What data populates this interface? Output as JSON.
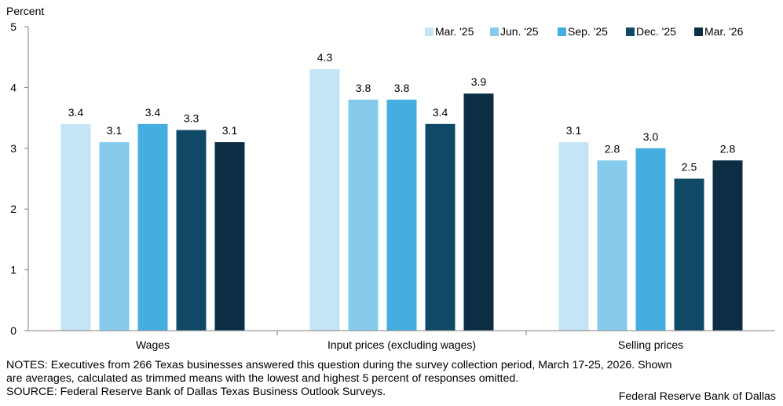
{
  "chart_data": {
    "type": "bar",
    "ylabel": "Percent",
    "ylim": [
      0,
      5
    ],
    "yticks": [
      "0",
      "1",
      "2",
      "3",
      "4",
      "5"
    ],
    "categories": [
      "Wages",
      "Input prices (excluding wages)",
      "Selling prices"
    ],
    "series": [
      {
        "name": "Mar. '25",
        "color": "#c5e4f5",
        "values": [
          3.4,
          4.3,
          3.1
        ],
        "labels": [
          "3.4",
          "4.3",
          "3.1"
        ]
      },
      {
        "name": "Jun. '25",
        "color": "#86cbeb",
        "values": [
          3.1,
          3.8,
          2.8
        ],
        "labels": [
          "3.1",
          "3.8",
          "2.8"
        ]
      },
      {
        "name": "Sep. '25",
        "color": "#45ade0",
        "values": [
          3.4,
          3.8,
          3.0
        ],
        "labels": [
          "3.4",
          "3.8",
          "3.0"
        ]
      },
      {
        "name": "Dec. '25",
        "color": "#104966",
        "values": [
          3.3,
          3.4,
          2.5
        ],
        "labels": [
          "3.3",
          "3.4",
          "2.5"
        ]
      },
      {
        "name": "Mar. '26",
        "color": "#0b2e45",
        "values": [
          3.1,
          3.9,
          2.8
        ],
        "labels": [
          "3.1",
          "3.9",
          "2.8"
        ]
      }
    ],
    "legend": "top-right",
    "grid": false
  },
  "notes": {
    "line1": "NOTES: Executives from 266 Texas businesses answered this question during the survey collection period, March 17-25, 2026. Shown",
    "line2": "are averages, calculated as trimmed means with the lowest and highest 5 percent of responses omitted.",
    "source": "SOURCE: Federal Reserve Bank of Dallas Texas Business Outlook Surveys."
  },
  "brand": "Federal Reserve Bank of Dallas"
}
